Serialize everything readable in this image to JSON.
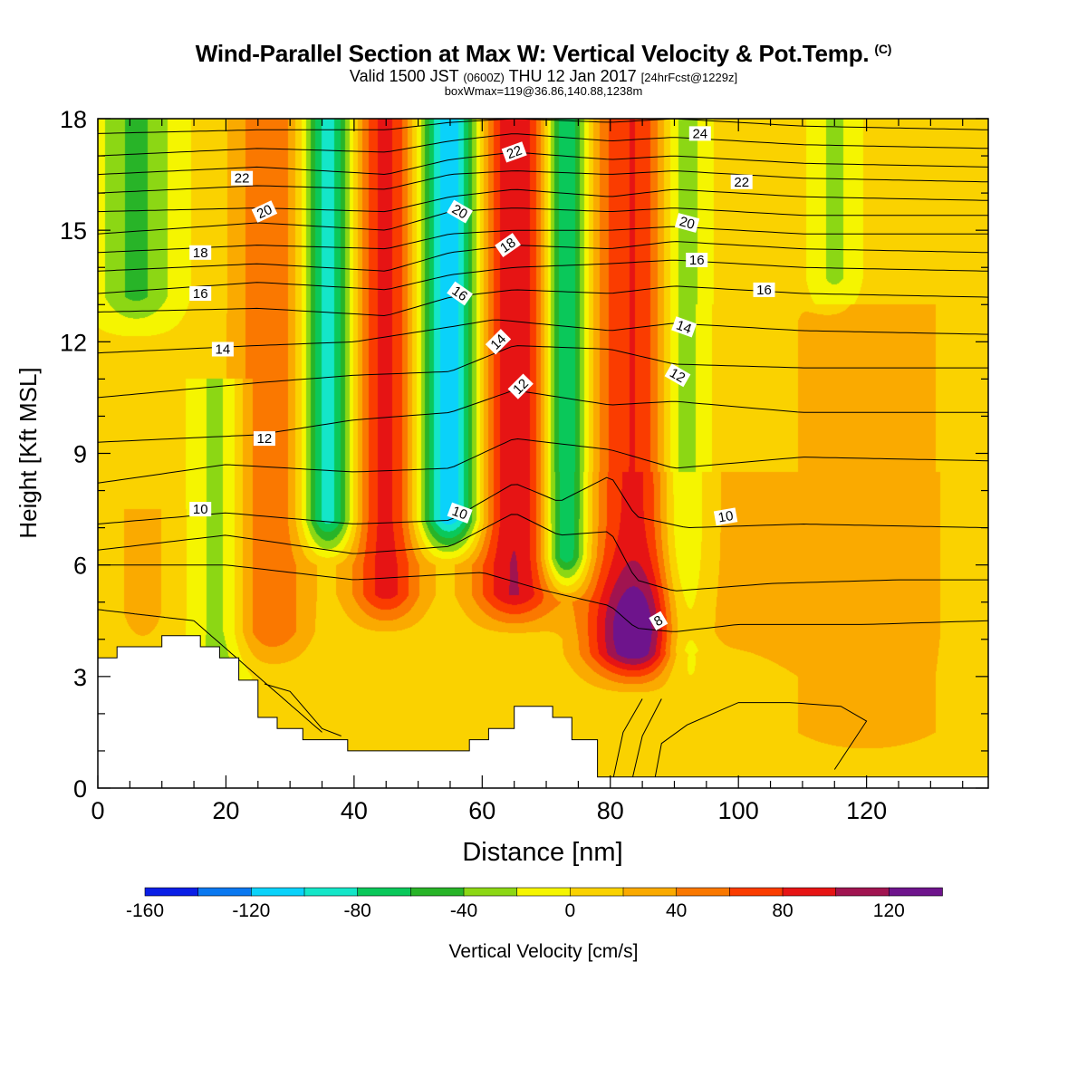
{
  "header": {
    "title": "Wind-Parallel Section at Max W: Vertical Velocity & Pot.Temp.",
    "copyright": "(C)",
    "valid_prefix": "Valid 1500 JST",
    "valid_zulu": "(0600Z)",
    "valid_date": "THU 12 Jan 2017",
    "forecast_info": "[24hrFcst@1229z]",
    "box_info": "boxWmax=119@36.86,140.88,1238m"
  },
  "chart_data": {
    "type": "heatmap",
    "xlabel": "Distance [nm]",
    "ylabel": "Height [Kft MSL]",
    "xlim": [
      0,
      139
    ],
    "ylim": [
      0,
      18
    ],
    "x_ticks": [
      "0",
      "20",
      "40",
      "60",
      "80",
      "100",
      "120"
    ],
    "y_ticks": [
      "0",
      "3",
      "6",
      "9",
      "12",
      "15",
      "18"
    ],
    "colorbar": {
      "label": "Vertical Velocity [cm/s]",
      "range": [
        -160,
        140
      ],
      "step": 20,
      "tick_labels": [
        "-160",
        "-120",
        "-80",
        "-40",
        "0",
        "40",
        "80",
        "120"
      ],
      "colors": [
        "#0a1ee6",
        "#0a78f0",
        "#0ad2fa",
        "#14e6c8",
        "#0ac85a",
        "#28b428",
        "#8cd714",
        "#f5f500",
        "#fad200",
        "#faaa00",
        "#fa7800",
        "#fa3c00",
        "#e61414",
        "#a01450",
        "#6e148c"
      ]
    },
    "terrain_kft": [
      [
        0,
        3.5
      ],
      [
        3,
        3.5
      ],
      [
        3,
        3.8
      ],
      [
        10,
        3.8
      ],
      [
        10,
        4.1
      ],
      [
        16,
        4.1
      ],
      [
        16,
        3.8
      ],
      [
        19,
        3.8
      ],
      [
        19,
        3.5
      ],
      [
        22,
        3.5
      ],
      [
        22,
        2.9
      ],
      [
        25,
        2.9
      ],
      [
        25,
        1.9
      ],
      [
        28,
        1.9
      ],
      [
        28,
        1.6
      ],
      [
        32,
        1.6
      ],
      [
        32,
        1.3
      ],
      [
        39,
        1.3
      ],
      [
        39,
        1.0
      ],
      [
        58,
        1.0
      ],
      [
        58,
        1.3
      ],
      [
        61,
        1.3
      ],
      [
        61,
        1.6
      ],
      [
        65,
        1.6
      ],
      [
        65,
        2.2
      ],
      [
        71,
        2.2
      ],
      [
        71,
        1.9
      ],
      [
        74,
        1.9
      ],
      [
        74,
        1.3
      ],
      [
        78,
        1.3
      ],
      [
        78,
        0.3
      ],
      [
        139,
        0.3
      ]
    ],
    "updrafts": [
      {
        "x": 84,
        "w": 7.5,
        "h0": 2.4,
        "h1": 18,
        "peak": 139
      },
      {
        "x": 65,
        "w": 6.5,
        "h0": 4.0,
        "h1": 18,
        "peak": 95
      },
      {
        "x": 45,
        "w": 5.5,
        "h0": 4.0,
        "h1": 18,
        "peak": 82
      },
      {
        "x": 27,
        "w": 6.0,
        "h0": 3.0,
        "h1": 18,
        "peak": 52
      },
      {
        "x": 7,
        "w": 3.5,
        "h0": 3.5,
        "h1": 7.5,
        "peak": 28
      },
      {
        "x": 120,
        "w": 16,
        "h0": 0.3,
        "h1": 13,
        "peak": 22
      },
      {
        "x": 102,
        "w": 18,
        "h0": 3.0,
        "h1": 8.5,
        "peak": 14
      }
    ],
    "downdrafts": [
      {
        "x": 55,
        "w": 5.0,
        "h0": 6.0,
        "h1": 18,
        "peak": -130
      },
      {
        "x": 36,
        "w": 4.0,
        "h0": 6.0,
        "h1": 18,
        "peak": -105
      },
      {
        "x": 73,
        "w": 3.5,
        "h0": 5.0,
        "h1": 18,
        "peak": -110
      },
      {
        "x": 91,
        "w": 4.0,
        "h0": 2.5,
        "h1": 18,
        "peak": -62
      },
      {
        "x": 19,
        "w": 4.0,
        "h0": 2.0,
        "h1": 11,
        "peak": -38
      },
      {
        "x": 6,
        "w": 6.0,
        "h0": 12,
        "h1": 18,
        "peak": -50
      },
      {
        "x": 115,
        "w": 3.5,
        "h0": 12.5,
        "h1": 18,
        "peak": -30
      }
    ],
    "theta_isentropes_kft": [
      {
        "k": 7,
        "points": [
          [
            0,
            4.8
          ],
          [
            15,
            4.5
          ],
          [
            25,
            3.0
          ],
          [
            35,
            1.5
          ]
        ]
      },
      {
        "k": 8,
        "points": [
          [
            0,
            6.0
          ],
          [
            20,
            6.0
          ],
          [
            40,
            5.6
          ],
          [
            60,
            5.8
          ],
          [
            70,
            5.3
          ],
          [
            80,
            4.9
          ],
          [
            84,
            4.3
          ],
          [
            90,
            4.2
          ],
          [
            100,
            4.4
          ],
          [
            120,
            4.4
          ],
          [
            139,
            4.5
          ]
        ]
      },
      {
        "k": 9,
        "points": [
          [
            0,
            6.4
          ],
          [
            20,
            6.8
          ],
          [
            40,
            6.3
          ],
          [
            55,
            6.5
          ],
          [
            65,
            7.4
          ],
          [
            72,
            6.8
          ],
          [
            80,
            6.9
          ],
          [
            84,
            5.6
          ],
          [
            90,
            5.3
          ],
          [
            105,
            5.5
          ],
          [
            125,
            5.6
          ],
          [
            139,
            5.6
          ]
        ]
      },
      {
        "k": 10,
        "points": [
          [
            0,
            7.1
          ],
          [
            20,
            7.4
          ],
          [
            40,
            7.1
          ],
          [
            55,
            7.2
          ],
          [
            65,
            8.2
          ],
          [
            72,
            7.7
          ],
          [
            80,
            8.4
          ],
          [
            84,
            7.3
          ],
          [
            92,
            7.0
          ],
          [
            110,
            7.1
          ],
          [
            139,
            7.0
          ]
        ]
      },
      {
        "k": 11,
        "points": [
          [
            0,
            8.2
          ],
          [
            20,
            8.7
          ],
          [
            40,
            8.5
          ],
          [
            55,
            8.6
          ],
          [
            65,
            9.4
          ],
          [
            80,
            9.1
          ],
          [
            90,
            8.6
          ],
          [
            110,
            8.9
          ],
          [
            139,
            8.8
          ]
        ]
      },
      {
        "k": 12,
        "points": [
          [
            0,
            9.3
          ],
          [
            25,
            9.5
          ],
          [
            40,
            9.9
          ],
          [
            55,
            10.1
          ],
          [
            65,
            10.7
          ],
          [
            80,
            10.3
          ],
          [
            90,
            10.4
          ],
          [
            110,
            10.1
          ],
          [
            139,
            10.1
          ]
        ]
      },
      {
        "k": 13,
        "points": [
          [
            0,
            10.5
          ],
          [
            25,
            10.9
          ],
          [
            40,
            11.1
          ],
          [
            55,
            11.2
          ],
          [
            65,
            11.9
          ],
          [
            80,
            11.8
          ],
          [
            90,
            11.4
          ],
          [
            110,
            11.3
          ],
          [
            139,
            11.3
          ]
        ]
      },
      {
        "k": 14,
        "points": [
          [
            0,
            11.7
          ],
          [
            25,
            11.9
          ],
          [
            40,
            12.0
          ],
          [
            55,
            12.4
          ],
          [
            62,
            12.6
          ],
          [
            80,
            12.3
          ],
          [
            90,
            12.5
          ],
          [
            110,
            12.3
          ],
          [
            139,
            12.2
          ]
        ]
      },
      {
        "k": 15,
        "points": [
          [
            0,
            12.8
          ],
          [
            25,
            12.9
          ],
          [
            45,
            12.7
          ],
          [
            55,
            13.2
          ],
          [
            65,
            13.4
          ],
          [
            80,
            13.3
          ],
          [
            90,
            13.5
          ],
          [
            110,
            13.3
          ],
          [
            139,
            13.2
          ]
        ]
      },
      {
        "k": 16,
        "points": [
          [
            0,
            13.3
          ],
          [
            25,
            13.6
          ],
          [
            45,
            13.4
          ],
          [
            55,
            13.8
          ],
          [
            65,
            14.0
          ],
          [
            80,
            14.1
          ],
          [
            90,
            14.2
          ],
          [
            110,
            14.0
          ],
          [
            139,
            13.9
          ]
        ]
      },
      {
        "k": 17,
        "points": [
          [
            0,
            13.9
          ],
          [
            25,
            14.1
          ],
          [
            45,
            13.9
          ],
          [
            55,
            14.4
          ],
          [
            65,
            14.6
          ],
          [
            80,
            14.5
          ],
          [
            90,
            14.7
          ],
          [
            110,
            14.5
          ],
          [
            139,
            14.4
          ]
        ]
      },
      {
        "k": 18,
        "points": [
          [
            0,
            14.4
          ],
          [
            25,
            14.6
          ],
          [
            45,
            14.5
          ],
          [
            55,
            14.9
          ],
          [
            65,
            15.0
          ],
          [
            80,
            15.0
          ],
          [
            90,
            15.1
          ],
          [
            110,
            14.9
          ],
          [
            139,
            14.9
          ]
        ]
      },
      {
        "k": 19,
        "points": [
          [
            0,
            14.9
          ],
          [
            25,
            15.2
          ],
          [
            45,
            15.0
          ],
          [
            55,
            15.5
          ],
          [
            65,
            15.6
          ],
          [
            80,
            15.5
          ],
          [
            90,
            15.6
          ],
          [
            110,
            15.4
          ],
          [
            139,
            15.4
          ]
        ]
      },
      {
        "k": 20,
        "points": [
          [
            0,
            15.5
          ],
          [
            25,
            15.6
          ],
          [
            45,
            15.5
          ],
          [
            55,
            15.9
          ],
          [
            65,
            16.1
          ],
          [
            80,
            15.9
          ],
          [
            90,
            16.1
          ],
          [
            110,
            15.9
          ],
          [
            139,
            15.8
          ]
        ]
      },
      {
        "k": 21,
        "points": [
          [
            0,
            16.0
          ],
          [
            25,
            16.2
          ],
          [
            45,
            16.1
          ],
          [
            55,
            16.5
          ],
          [
            65,
            16.6
          ],
          [
            80,
            16.5
          ],
          [
            90,
            16.6
          ],
          [
            110,
            16.4
          ],
          [
            139,
            16.3
          ]
        ]
      },
      {
        "k": 22,
        "points": [
          [
            0,
            16.5
          ],
          [
            25,
            16.7
          ],
          [
            45,
            16.5
          ],
          [
            55,
            16.9
          ],
          [
            65,
            17.1
          ],
          [
            80,
            16.9
          ],
          [
            90,
            17.0
          ],
          [
            110,
            16.8
          ],
          [
            139,
            16.7
          ]
        ]
      },
      {
        "k": 23,
        "points": [
          [
            0,
            17.0
          ],
          [
            25,
            17.2
          ],
          [
            45,
            17.1
          ],
          [
            55,
            17.4
          ],
          [
            65,
            17.6
          ],
          [
            80,
            17.4
          ],
          [
            90,
            17.5
          ],
          [
            110,
            17.3
          ],
          [
            139,
            17.2
          ]
        ]
      },
      {
        "k": 24,
        "points": [
          [
            0,
            17.6
          ],
          [
            25,
            17.7
          ],
          [
            45,
            17.7
          ],
          [
            55,
            17.9
          ],
          [
            65,
            18.0
          ],
          [
            80,
            17.9
          ],
          [
            90,
            18.0
          ],
          [
            110,
            17.8
          ],
          [
            139,
            17.7
          ]
        ]
      }
    ],
    "near_ground_contours_kft": [
      [
        [
          80.5,
          0.3
        ],
        [
          82,
          1.5
        ],
        [
          85,
          2.4
        ]
      ],
      [
        [
          83.5,
          0.3
        ],
        [
          85,
          1.4
        ],
        [
          88,
          2.4
        ]
      ],
      [
        [
          87,
          0.3
        ],
        [
          88,
          1.2
        ],
        [
          92,
          1.7
        ],
        [
          100,
          2.3
        ],
        [
          108,
          2.3
        ],
        [
          116,
          2.2
        ],
        [
          120,
          1.8
        ],
        [
          115,
          0.5
        ]
      ],
      [
        [
          26,
          2.8
        ],
        [
          30,
          2.6
        ],
        [
          33,
          2.0
        ],
        [
          35,
          1.6
        ],
        [
          38,
          1.4
        ]
      ]
    ],
    "contour_labels": [
      {
        "text": "22",
        "x": 22.5,
        "y": 16.4,
        "angle": 0
      },
      {
        "text": "20",
        "x": 26,
        "y": 15.5,
        "angle": -25
      },
      {
        "text": "18",
        "x": 16,
        "y": 14.4,
        "angle": 0
      },
      {
        "text": "16",
        "x": 16,
        "y": 13.3,
        "angle": 0
      },
      {
        "text": "14",
        "x": 19.5,
        "y": 11.8,
        "angle": 0
      },
      {
        "text": "12",
        "x": 26,
        "y": 9.4,
        "angle": 0
      },
      {
        "text": "10",
        "x": 16,
        "y": 7.5,
        "angle": 0
      },
      {
        "text": "22",
        "x": 65,
        "y": 17.1,
        "angle": -20
      },
      {
        "text": "20",
        "x": 56.5,
        "y": 15.5,
        "angle": 30
      },
      {
        "text": "18",
        "x": 64,
        "y": 14.6,
        "angle": -35
      },
      {
        "text": "16",
        "x": 56.5,
        "y": 13.3,
        "angle": 35
      },
      {
        "text": "14",
        "x": 62.5,
        "y": 12.0,
        "angle": -45
      },
      {
        "text": "12",
        "x": 66,
        "y": 10.8,
        "angle": -45
      },
      {
        "text": "10",
        "x": 56.5,
        "y": 7.4,
        "angle": 20
      },
      {
        "text": "24",
        "x": 94,
        "y": 17.6,
        "angle": 0
      },
      {
        "text": "22",
        "x": 100.5,
        "y": 16.3,
        "angle": 0
      },
      {
        "text": "20",
        "x": 92,
        "y": 15.2,
        "angle": 15
      },
      {
        "text": "16",
        "x": 93.5,
        "y": 14.2,
        "angle": 0
      },
      {
        "text": "16",
        "x": 104,
        "y": 13.4,
        "angle": 0
      },
      {
        "text": "14",
        "x": 91.5,
        "y": 12.4,
        "angle": 20
      },
      {
        "text": "12",
        "x": 90.5,
        "y": 11.1,
        "angle": 30
      },
      {
        "text": "10",
        "x": 98,
        "y": 7.3,
        "angle": -10
      },
      {
        "text": "8",
        "x": 87.5,
        "y": 4.5,
        "angle": -30
      }
    ]
  }
}
